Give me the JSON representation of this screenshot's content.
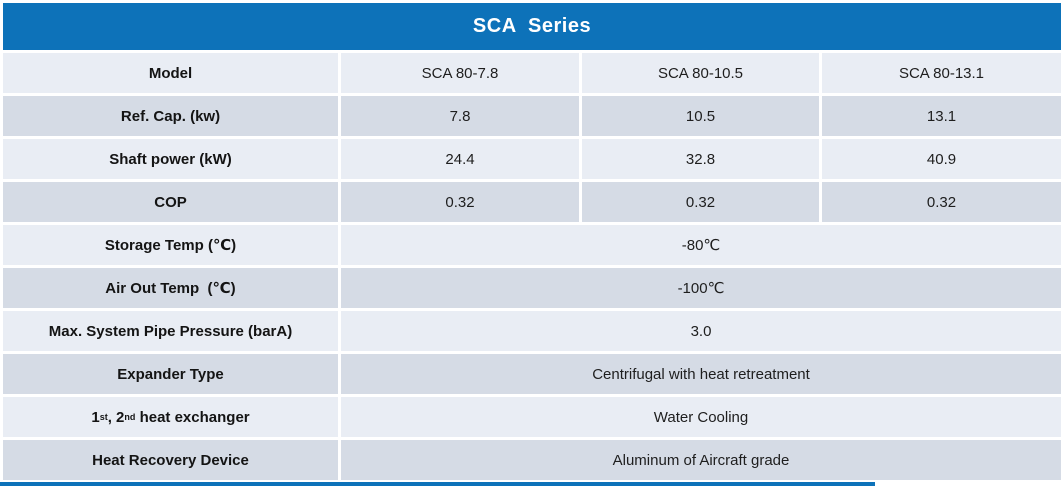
{
  "header": {
    "title": "SCA  Series"
  },
  "colors": {
    "header_bg": "#0d72b9",
    "row_light": "#e9edf4",
    "row_dark": "#d5dbe5",
    "bottom_bar": "#0d72b9"
  },
  "chart_data": {
    "type": "table",
    "title": "SCA  Series",
    "models": [
      "SCA 80-7.8",
      "SCA 80-10.5",
      "SCA 80-13.1"
    ],
    "rows": [
      {
        "id": "model",
        "label": "Model",
        "type": "cols",
        "shade": "light",
        "values": [
          "SCA 80-7.8",
          "SCA 80-10.5",
          "SCA 80-13.1"
        ]
      },
      {
        "id": "ref-cap",
        "label": "Ref. Cap. (kw)",
        "type": "cols",
        "shade": "dark",
        "values": [
          "7.8",
          "10.5",
          "13.1"
        ]
      },
      {
        "id": "shaft-power",
        "label": "Shaft power (kW)",
        "type": "cols",
        "shade": "light",
        "values": [
          "24.4",
          "32.8",
          "40.9"
        ]
      },
      {
        "id": "cop",
        "label": "COP",
        "type": "cols",
        "shade": "dark",
        "values": [
          "0.32",
          "0.32",
          "0.32"
        ]
      },
      {
        "id": "storage-temp",
        "label": "Storage Temp (℃)",
        "type": "merged",
        "shade": "light",
        "value": "-80℃"
      },
      {
        "id": "air-out-temp",
        "label": "Air Out Temp  (℃)",
        "type": "merged",
        "shade": "dark",
        "value": "-100℃"
      },
      {
        "id": "max-pipe-pressure",
        "label": "Max. System Pipe Pressure (barA)",
        "type": "merged",
        "shade": "light",
        "value": "3.0"
      },
      {
        "id": "expander-type",
        "label": "Expander Type",
        "type": "merged",
        "shade": "dark",
        "value": "Centrifugal with heat retreatment"
      },
      {
        "id": "heat-exchanger",
        "label": "1st, 2nd heat exchanger",
        "type": "merged",
        "shade": "light",
        "label_parts": [
          {
            "t": "1"
          },
          {
            "t": "st",
            "sup": true
          },
          {
            "t": ", 2"
          },
          {
            "t": "nd",
            "sup": true
          },
          {
            "t": " heat exchanger"
          }
        ],
        "value": "Water Cooling"
      },
      {
        "id": "heat-recovery",
        "label": "Heat Recovery Device",
        "type": "merged",
        "shade": "dark",
        "value": "Aluminum of Aircraft grade"
      }
    ]
  }
}
